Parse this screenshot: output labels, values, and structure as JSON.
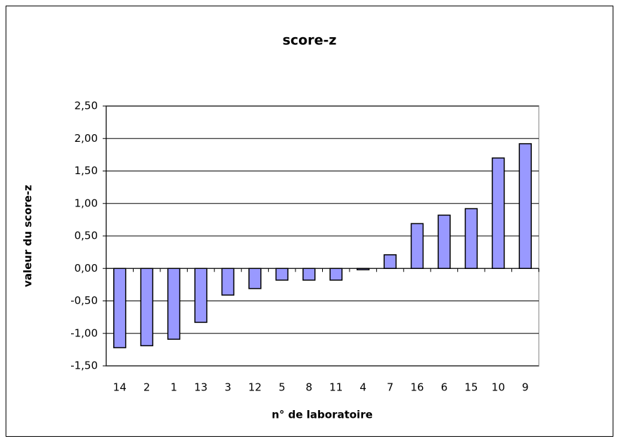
{
  "chart_data": {
    "type": "bar",
    "title": "score-z",
    "x_label": "n° de laboratoire",
    "y_label": "valeur du score-z",
    "categories": [
      "14",
      "2",
      "1",
      "13",
      "3",
      "12",
      "5",
      "8",
      "11",
      "4",
      "7",
      "16",
      "6",
      "15",
      "10",
      "9"
    ],
    "values": [
      -1.22,
      -1.19,
      -1.09,
      -0.83,
      -0.41,
      -0.31,
      -0.18,
      -0.18,
      -0.18,
      -0.02,
      0.21,
      0.69,
      0.82,
      0.92,
      1.7,
      1.92
    ],
    "color": "#9999ff",
    "ylim": [
      -1.5,
      2.5
    ],
    "yticks": [
      {
        "value": -1.5,
        "label": "-1,50"
      },
      {
        "value": -1.0,
        "label": "-1,00"
      },
      {
        "value": -0.5,
        "label": "-0,50"
      },
      {
        "value": 0,
        "label": "0,00"
      },
      {
        "value": 0.5,
        "label": "0,50"
      },
      {
        "value": 1.0,
        "label": "1,00"
      },
      {
        "value": 1.5,
        "label": "1,50"
      },
      {
        "value": 2.0,
        "label": "2,00"
      },
      {
        "value": 2.5,
        "label": "2,50"
      }
    ],
    "grid": true
  }
}
